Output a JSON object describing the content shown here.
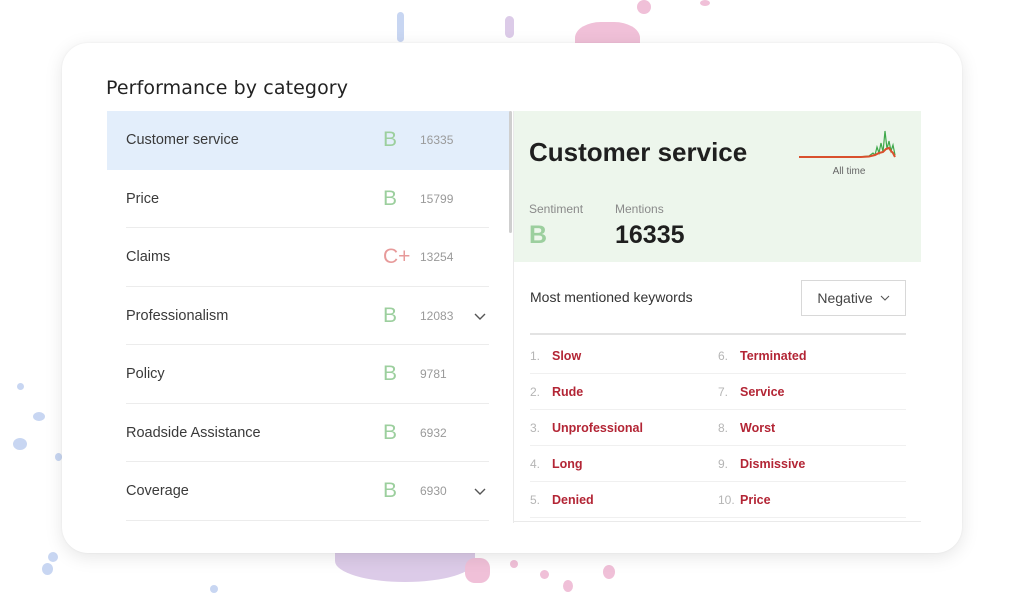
{
  "card": {
    "title": "Performance by category"
  },
  "colors": {
    "grade_good": "#9ccf9e",
    "grade_bad": "#e79a9a",
    "keyword": "#b32535",
    "selected_row": "#e3eefb",
    "detail_bg": "#edf6ec"
  },
  "categories": [
    {
      "name": "Customer service",
      "grade": "B",
      "grade_tone": "good",
      "count": "16335",
      "expandable": false,
      "selected": true
    },
    {
      "name": "Price",
      "grade": "B",
      "grade_tone": "good",
      "count": "15799",
      "expandable": false,
      "selected": false
    },
    {
      "name": "Claims",
      "grade": "C+",
      "grade_tone": "bad",
      "count": "13254",
      "expandable": false,
      "selected": false
    },
    {
      "name": "Professionalism",
      "grade": "B",
      "grade_tone": "good",
      "count": "12083",
      "expandable": true,
      "selected": false
    },
    {
      "name": "Policy",
      "grade": "B",
      "grade_tone": "good",
      "count": "9781",
      "expandable": false,
      "selected": false
    },
    {
      "name": "Roadside Assistance",
      "grade": "B",
      "grade_tone": "good",
      "count": "6932",
      "expandable": false,
      "selected": false
    },
    {
      "name": "Coverage",
      "grade": "B",
      "grade_tone": "good",
      "count": "6930",
      "expandable": true,
      "selected": false
    }
  ],
  "detail": {
    "title": "Customer service",
    "sparkline_label": "All time",
    "sentiment_label": "Sentiment",
    "sentiment_value": "B",
    "mentions_label": "Mentions",
    "mentions_value": "16335"
  },
  "keywords": {
    "title": "Most mentioned keywords",
    "filter": "Negative",
    "left": [
      {
        "num": "1.",
        "word": "Slow"
      },
      {
        "num": "2.",
        "word": "Rude"
      },
      {
        "num": "3.",
        "word": "Unprofessional"
      },
      {
        "num": "4.",
        "word": "Long"
      },
      {
        "num": "5.",
        "word": "Denied"
      }
    ],
    "right": [
      {
        "num": "6.",
        "word": "Terminated"
      },
      {
        "num": "7.",
        "word": "Service"
      },
      {
        "num": "8.",
        "word": "Worst"
      },
      {
        "num": "9.",
        "word": "Dismissive"
      },
      {
        "num": "10.",
        "word": "Price"
      }
    ]
  }
}
